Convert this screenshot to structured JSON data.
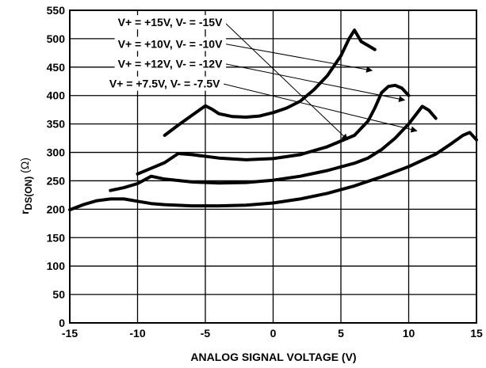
{
  "chart_data": {
    "type": "line",
    "title": "",
    "xlabel": "ANALOG SIGNAL VOLTAGE (V)",
    "ylabel_main": "r",
    "ylabel_sub": "DS(ON)",
    "ylabel_unit": " (Ω)",
    "xlim": [
      -15,
      15
    ],
    "ylim": [
      0,
      550
    ],
    "x_ticks": [
      -15,
      -10,
      -5,
      0,
      5,
      10,
      15
    ],
    "x_tick_labels": [
      "-15",
      "-10",
      "-5",
      "0",
      "5",
      "10",
      "15"
    ],
    "y_ticks": [
      0,
      50,
      100,
      150,
      200,
      250,
      300,
      350,
      400,
      450,
      500,
      550
    ],
    "y_tick_labels": [
      "0",
      "50",
      "100",
      "150",
      "200",
      "250",
      "300",
      "350",
      "400",
      "450",
      "500",
      "550"
    ],
    "grid": true,
    "series": [
      {
        "name": "V+ = +15V, V- = -15V",
        "label_anchor": [
          -7.6,
          522
        ],
        "arrow_to": [
          5.5,
          322
        ],
        "points": [
          [
            -15,
            199
          ],
          [
            -14,
            208
          ],
          [
            -13,
            215
          ],
          [
            -12,
            218
          ],
          [
            -11,
            218
          ],
          [
            -10,
            214
          ],
          [
            -9,
            210
          ],
          [
            -8,
            208
          ],
          [
            -6,
            206
          ],
          [
            -4,
            206
          ],
          [
            -2,
            207
          ],
          [
            0,
            211
          ],
          [
            2,
            218
          ],
          [
            4,
            228
          ],
          [
            6,
            241
          ],
          [
            8,
            257
          ],
          [
            10,
            275
          ],
          [
            12,
            297
          ],
          [
            13,
            313
          ],
          [
            14,
            330
          ],
          [
            14.5,
            335
          ],
          [
            15,
            322
          ]
        ]
      },
      {
        "name": "V+ = +10V, V- = -10V",
        "label_anchor": [
          -7.6,
          484
        ],
        "arrow_to": [
          7.3,
          444
        ],
        "points": [
          [
            -8,
            330
          ],
          [
            -7,
            348
          ],
          [
            -6,
            365
          ],
          [
            -5,
            382
          ],
          [
            -4.5,
            376
          ],
          [
            -4,
            368
          ],
          [
            -3,
            363
          ],
          [
            -2,
            362
          ],
          [
            -1,
            364
          ],
          [
            0,
            370
          ],
          [
            1,
            378
          ],
          [
            2,
            390
          ],
          [
            3,
            410
          ],
          [
            4,
            435
          ],
          [
            5,
            470
          ],
          [
            5.6,
            500
          ],
          [
            6,
            515
          ],
          [
            6.5,
            495
          ],
          [
            7,
            488
          ],
          [
            7.5,
            481
          ]
        ]
      },
      {
        "name": "V+ = +12V, V- = -12V",
        "label_anchor": [
          -7.6,
          449
        ],
        "arrow_to": [
          9.7,
          392
        ],
        "points": [
          [
            -10,
            262
          ],
          [
            -9,
            272
          ],
          [
            -8,
            282
          ],
          [
            -7,
            298
          ],
          [
            -6,
            296
          ],
          [
            -4,
            290
          ],
          [
            -2,
            287
          ],
          [
            0,
            289
          ],
          [
            2,
            296
          ],
          [
            4,
            310
          ],
          [
            6,
            330
          ],
          [
            7,
            355
          ],
          [
            7.5,
            378
          ],
          [
            8,
            405
          ],
          [
            8.5,
            416
          ],
          [
            9,
            418
          ],
          [
            9.5,
            413
          ],
          [
            10,
            400
          ]
        ]
      },
      {
        "name": "V+ = +7.5V, V- = -7.5V",
        "label_anchor": [
          -8.0,
          414
        ],
        "arrow_to": [
          10.6,
          338
        ],
        "points": [
          [
            -12,
            233
          ],
          [
            -11,
            238
          ],
          [
            -10,
            245
          ],
          [
            -9,
            258
          ],
          [
            -8,
            253
          ],
          [
            -6,
            248
          ],
          [
            -4,
            246
          ],
          [
            -2,
            247
          ],
          [
            0,
            251
          ],
          [
            2,
            258
          ],
          [
            4,
            268
          ],
          [
            6,
            281
          ],
          [
            7,
            290
          ],
          [
            8,
            305
          ],
          [
            9,
            325
          ],
          [
            10,
            350
          ],
          [
            11,
            381
          ],
          [
            11.5,
            374
          ],
          [
            12,
            360
          ]
        ]
      }
    ]
  }
}
